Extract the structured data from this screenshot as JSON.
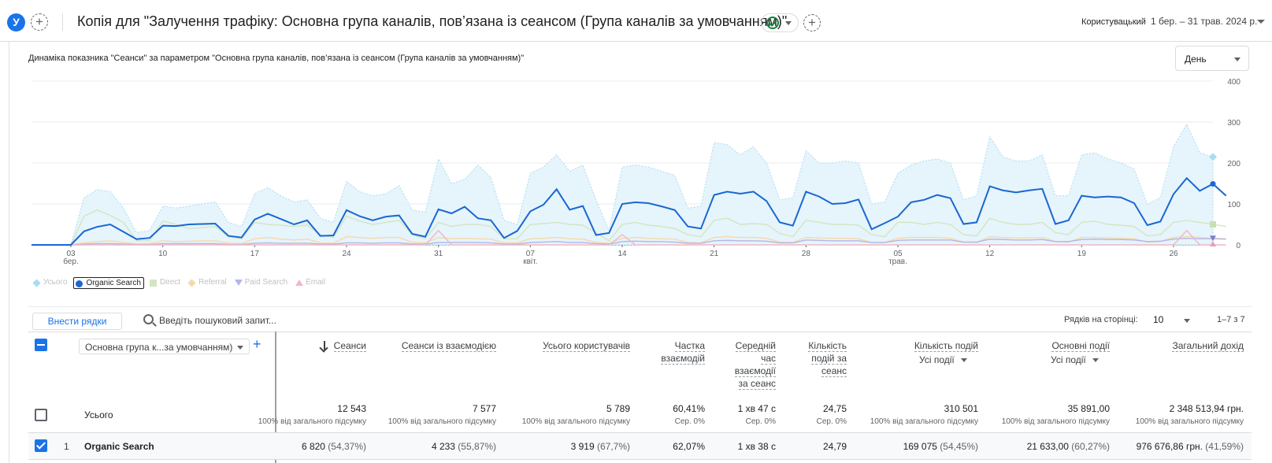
{
  "header": {
    "avatar_letter": "У",
    "title": "Копія для \"Залучення трафіку: Основна група каналів, пов’язана із сеансом (Група каналів за умовчанням)\"",
    "compare_label": "Користувацький",
    "date_range": "1 бер. – 31 трав. 2024 р.",
    "status_icon": "check-circle-icon"
  },
  "chart": {
    "title": "Динаміка показника \"Сеанси\" за параметром \"Основна група каналів, пов’язана із сеансом (Група каналів за умовчанням)\"",
    "period": "День",
    "legend": [
      {
        "label": "Усього",
        "color": "#a8dcf0",
        "shape": "diamond",
        "active": false
      },
      {
        "label": "Organic Search",
        "color": "#1967d2",
        "shape": "circle",
        "active": true
      },
      {
        "label": "Direct",
        "color": "#d3e6c1",
        "shape": "square",
        "active": false
      },
      {
        "label": "Referral",
        "color": "#f6d9a8",
        "shape": "diamond",
        "active": false
      },
      {
        "label": "Paid Search",
        "color": "#b0b6ea",
        "shape": "tri-down",
        "active": false
      },
      {
        "label": "Email",
        "color": "#f3b6c6",
        "shape": "tri-up",
        "active": false
      }
    ]
  },
  "chart_data": {
    "type": "line",
    "title": "Динаміка показника \"Сеанси\" за параметром \"Основна група каналів, пов’язана із сеансом (Група каналів за умовчанням)\"",
    "x_ticks": [
      {
        "day": 3,
        "label": "03",
        "sublabel": "бер."
      },
      {
        "day": 10,
        "label": "10",
        "sublabel": ""
      },
      {
        "day": 17,
        "label": "17",
        "sublabel": ""
      },
      {
        "day": 24,
        "label": "24",
        "sublabel": ""
      },
      {
        "day": 31,
        "label": "31",
        "sublabel": ""
      },
      {
        "day": 38,
        "label": "07",
        "sublabel": "квіт."
      },
      {
        "day": 45,
        "label": "14",
        "sublabel": ""
      },
      {
        "day": 52,
        "label": "21",
        "sublabel": ""
      },
      {
        "day": 59,
        "label": "28",
        "sublabel": ""
      },
      {
        "day": 66,
        "label": "05",
        "sublabel": "трав."
      },
      {
        "day": 73,
        "label": "12",
        "sublabel": ""
      },
      {
        "day": 80,
        "label": "19",
        "sublabel": ""
      },
      {
        "day": 87,
        "label": "26",
        "sublabel": ""
      }
    ],
    "y_ticks": [
      0,
      100,
      200,
      300,
      400
    ],
    "ylim": [
      0,
      400
    ],
    "grid": true,
    "series": [
      {
        "name": "Усього",
        "color": "#a8dcf0",
        "style": "area",
        "values": [
          0,
          0,
          0,
          0,
          115,
          135,
          130,
          90,
          30,
          35,
          95,
          90,
          95,
          100,
          105,
          55,
          45,
          125,
          140,
          120,
          105,
          110,
          65,
          55,
          155,
          130,
          120,
          125,
          145,
          85,
          80,
          210,
          150,
          160,
          195,
          165,
          60,
          50,
          175,
          190,
          220,
          180,
          195,
          110,
          35,
          190,
          195,
          190,
          180,
          170,
          90,
          95,
          250,
          245,
          220,
          240,
          200,
          110,
          115,
          230,
          200,
          200,
          205,
          200,
          100,
          105,
          175,
          195,
          205,
          210,
          200,
          110,
          120,
          265,
          215,
          205,
          205,
          220,
          120,
          120,
          220,
          225,
          210,
          200,
          185,
          100,
          115,
          240,
          295,
          225,
          215
        ]
      },
      {
        "name": "Organic Search",
        "color": "#1967d2",
        "style": "line",
        "values": [
          0,
          0,
          0,
          0,
          33,
          44,
          50,
          32,
          14,
          17,
          47,
          46,
          50,
          51,
          52,
          22,
          18,
          62,
          76,
          63,
          50,
          60,
          22,
          23,
          85,
          70,
          60,
          69,
          72,
          27,
          20,
          87,
          77,
          93,
          65,
          60,
          17,
          34,
          82,
          98,
          136,
          86,
          95,
          24,
          29,
          100,
          104,
          102,
          94,
          85,
          45,
          40,
          122,
          130,
          125,
          130,
          107,
          55,
          47,
          130,
          118,
          100,
          102,
          111,
          38,
          53,
          69,
          104,
          110,
          122,
          114,
          51,
          55,
          143,
          133,
          128,
          133,
          137,
          51,
          60,
          120,
          116,
          118,
          116,
          102,
          48,
          57,
          124,
          163,
          132,
          149,
          120
        ]
      },
      {
        "name": "Direct",
        "color": "#d3e6c1",
        "style": "line",
        "values": [
          0,
          0,
          0,
          0,
          70,
          85,
          72,
          55,
          10,
          10,
          58,
          50,
          40,
          42,
          45,
          20,
          15,
          55,
          50,
          48,
          45,
          48,
          25,
          18,
          70,
          58,
          50,
          55,
          60,
          25,
          15,
          55,
          45,
          50,
          50,
          45,
          15,
          15,
          50,
          52,
          55,
          50,
          48,
          30,
          10,
          50,
          55,
          48,
          45,
          40,
          25,
          20,
          60,
          65,
          50,
          52,
          50,
          28,
          20,
          60,
          55,
          50,
          50,
          48,
          25,
          20,
          55,
          55,
          50,
          55,
          50,
          25,
          22,
          65,
          55,
          50,
          50,
          55,
          30,
          25,
          55,
          58,
          50,
          48,
          45,
          22,
          25,
          55,
          60,
          55,
          50,
          45
        ]
      },
      {
        "name": "Referral",
        "color": "#f6d9a8",
        "style": "line",
        "values": [
          0,
          0,
          0,
          0,
          5,
          8,
          10,
          6,
          2,
          3,
          10,
          8,
          9,
          10,
          10,
          4,
          3,
          15,
          18,
          14,
          12,
          14,
          5,
          4,
          20,
          18,
          16,
          18,
          18,
          6,
          5,
          18,
          15,
          16,
          15,
          14,
          5,
          5,
          15,
          16,
          18,
          15,
          14,
          6,
          4,
          16,
          18,
          16,
          15,
          14,
          6,
          5,
          18,
          20,
          18,
          18,
          16,
          7,
          6,
          18,
          17,
          16,
          16,
          15,
          6,
          6,
          16,
          18,
          18,
          18,
          16,
          7,
          6,
          20,
          18,
          17,
          17,
          18,
          8,
          7,
          18,
          18,
          17,
          16,
          15,
          7,
          8,
          18,
          20,
          18,
          16,
          15
        ]
      },
      {
        "name": "Paid Search",
        "color": "#b0b6ea",
        "style": "line",
        "values": [
          0,
          0,
          0,
          0,
          2,
          3,
          3,
          2,
          1,
          1,
          3,
          3,
          3,
          3,
          3,
          1,
          1,
          4,
          5,
          4,
          4,
          4,
          2,
          2,
          5,
          5,
          4,
          5,
          5,
          2,
          2,
          6,
          6,
          6,
          6,
          5,
          2,
          2,
          6,
          7,
          8,
          6,
          6,
          3,
          2,
          8,
          9,
          8,
          8,
          7,
          4,
          4,
          10,
          11,
          10,
          10,
          9,
          5,
          5,
          12,
          11,
          10,
          10,
          10,
          6,
          6,
          11,
          12,
          12,
          12,
          12,
          7,
          7,
          14,
          13,
          12,
          12,
          13,
          8,
          8,
          13,
          14,
          13,
          13,
          12,
          8,
          9,
          14,
          16,
          15,
          15,
          14
        ]
      },
      {
        "name": "Email",
        "color": "#f3b6c6",
        "style": "line",
        "values": [
          0,
          0,
          0,
          0,
          0,
          0,
          0,
          0,
          0,
          0,
          0,
          0,
          0,
          0,
          0,
          0,
          0,
          0,
          0,
          0,
          0,
          0,
          0,
          0,
          0,
          0,
          0,
          0,
          0,
          0,
          0,
          35,
          0,
          0,
          0,
          0,
          0,
          0,
          0,
          0,
          0,
          0,
          0,
          0,
          0,
          25,
          0,
          0,
          0,
          0,
          0,
          0,
          0,
          0,
          0,
          0,
          0,
          0,
          0,
          0,
          0,
          0,
          0,
          0,
          0,
          0,
          0,
          0,
          0,
          0,
          0,
          0,
          0,
          0,
          0,
          0,
          0,
          0,
          0,
          0,
          0,
          0,
          0,
          0,
          0,
          0,
          0,
          0,
          35,
          0,
          0,
          0
        ]
      }
    ],
    "legend_position": "bottom-left"
  },
  "table": {
    "add_rows_label": "Внести рядки",
    "search_placeholder": "Введіть пошуковий запит...",
    "rows_per_page_label": "Рядків на сторінці:",
    "rows_per_page": "10",
    "pagination": "1–7 з 7",
    "dimension_select": "Основна група к...за умовчанням)",
    "columns": [
      {
        "label": "Сеанси",
        "sub": "",
        "sorted": true
      },
      {
        "label": "Сеанси із взаємодією",
        "sub": ""
      },
      {
        "label": "Усього користувачів",
        "sub": ""
      },
      {
        "label": "Частка взаємодій",
        "sub": ""
      },
      {
        "label": "Середній час взаємодії за сеанс",
        "sub": ""
      },
      {
        "label": "Кількість подій за сеанс",
        "sub": ""
      },
      {
        "label": "Кількість подій",
        "sub": "Усі події"
      },
      {
        "label": "Основні події",
        "sub": "Усі події"
      },
      {
        "label": "Загальний дохід",
        "sub": ""
      }
    ],
    "totals": {
      "label": "Усього",
      "values": [
        "12 543",
        "7 577",
        "5 789",
        "60,41%",
        "1 хв 47 с",
        "24,75",
        "310 501",
        "35 891,00",
        "2 348 513,94 грн."
      ],
      "subs": [
        "100% від загального підсумку",
        "100% від загального підсумку",
        "100% від загального підсумку",
        "Сер. 0%",
        "Сер. 0%",
        "Сер. 0%",
        "100% від загального підсумку",
        "100% від загального підсумку",
        "100% від загального підсумку"
      ]
    },
    "rows": [
      {
        "index": "1",
        "name": "Organic Search",
        "values": [
          "6 820",
          "4 233",
          "3 919",
          "62,07%",
          "1 хв 38 с",
          "24,79",
          "169 075",
          "21 633,00",
          "976 676,86 грн."
        ],
        "pcts": [
          "(54,37%)",
          "(55,87%)",
          "(67,7%)",
          "",
          "",
          "",
          "(54,45%)",
          "(60,27%)",
          "(41,59%)"
        ]
      }
    ]
  }
}
